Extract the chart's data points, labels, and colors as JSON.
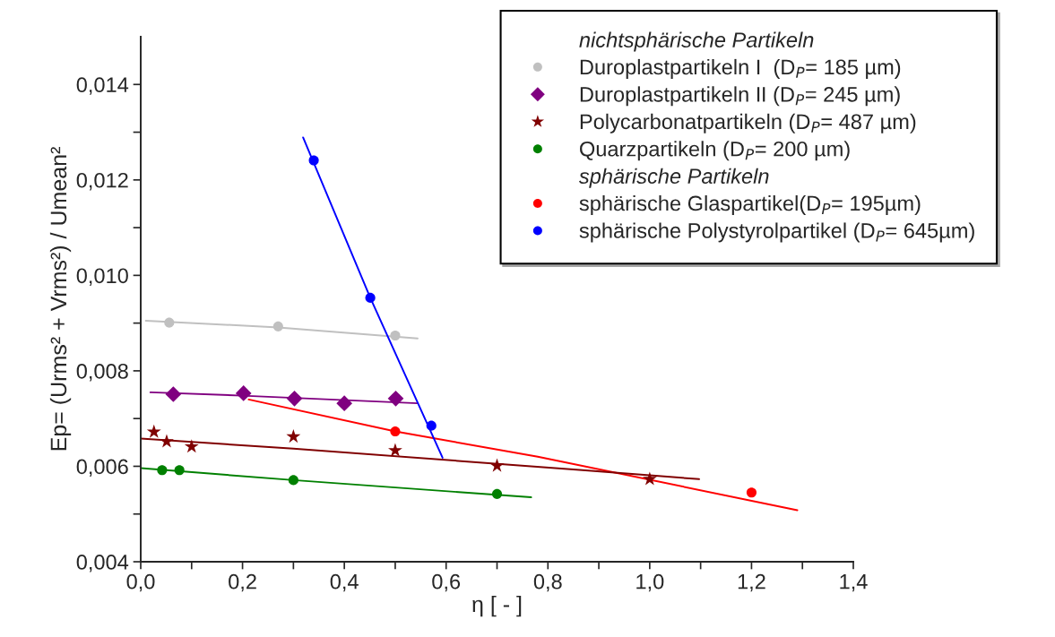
{
  "chart_data": {
    "type": "scatter",
    "xlabel": "η [ - ]",
    "ylabel": "Ep= (Urms² + Vrms²) / Umean²",
    "xlim": [
      0,
      1.4
    ],
    "ylim": [
      0.004,
      0.015
    ],
    "xticks": [
      {
        "value": 0,
        "label": "0,0"
      },
      {
        "value": 0.1,
        "label": null
      },
      {
        "value": 0.2,
        "label": "0,2"
      },
      {
        "value": 0.3,
        "label": null
      },
      {
        "value": 0.4,
        "label": "0,4"
      },
      {
        "value": 0.5,
        "label": null
      },
      {
        "value": 0.6,
        "label": "0,6"
      },
      {
        "value": 0.7,
        "label": null
      },
      {
        "value": 0.8,
        "label": "0,8"
      },
      {
        "value": 0.9,
        "label": null
      },
      {
        "value": 1.0,
        "label": "1,0"
      },
      {
        "value": 1.1,
        "label": null
      },
      {
        "value": 1.2,
        "label": "1,2"
      },
      {
        "value": 1.3,
        "label": null
      },
      {
        "value": 1.4,
        "label": "1,4"
      }
    ],
    "yticks": [
      {
        "value": 0.004,
        "label": "0,004"
      },
      {
        "value": 0.005,
        "label": null
      },
      {
        "value": 0.006,
        "label": "0,006"
      },
      {
        "value": 0.007,
        "label": null
      },
      {
        "value": 0.008,
        "label": "0,008"
      },
      {
        "value": 0.009,
        "label": null
      },
      {
        "value": 0.01,
        "label": "0,010"
      },
      {
        "value": 0.011,
        "label": null
      },
      {
        "value": 0.012,
        "label": "0,012"
      },
      {
        "value": 0.013,
        "label": null
      },
      {
        "value": 0.014,
        "label": "0,014"
      }
    ],
    "grid": false,
    "legend": "top right",
    "annotations": [
      "nichtsphärische Partikeln",
      "sphärische Partikeln"
    ],
    "series": [
      {
        "name": "Duroplastpartikeln I  (D$_{P}$= 185 µm)",
        "marker": "circle",
        "color": "#c0c0c0",
        "x": [
          0.056,
          0.27,
          0.5
        ],
        "values": [
          0.00901,
          0.00893,
          0.00874
        ]
      },
      {
        "name": "Duroplastpartikeln II (D$_{P}$= 245 µm)",
        "marker": "diamond",
        "color": "#800080",
        "x": [
          0.064,
          0.202,
          0.302,
          0.4,
          0.501
        ],
        "values": [
          0.00751,
          0.00753,
          0.00742,
          0.00732,
          0.00742
        ]
      },
      {
        "name": "Polycarbonatpartikeln (D$_{P}$= 487 µm)",
        "marker": "star",
        "color": "#800000",
        "x": [
          0.026,
          0.051,
          0.1,
          0.3,
          0.5,
          0.7,
          1.0
        ],
        "values": [
          0.00672,
          0.00652,
          0.00641,
          0.00662,
          0.00633,
          0.00601,
          0.00573
        ]
      },
      {
        "name": "Quarzpartikeln (D$_{P}$= 200 µm)",
        "marker": "circle",
        "color": "#008000",
        "x": [
          0.042,
          0.076,
          0.3,
          0.7
        ],
        "values": [
          0.00592,
          0.00592,
          0.00571,
          0.00542
        ]
      },
      {
        "name": "sphärische Glaspartikel(D$_{P}$= 195µm)",
        "marker": "circle",
        "color": "#ff0000",
        "x": [
          0.5,
          1.2
        ],
        "values": [
          0.00673,
          0.00545
        ]
      },
      {
        "name": "sphärische Polystyrolpartikel (D$_{P}$= 645µm)",
        "marker": "circle",
        "color": "#0000ff",
        "x": [
          0.34,
          0.451,
          0.571
        ],
        "values": [
          0.01241,
          0.00953,
          0.00685
        ]
      },
      {
        "type": "line",
        "color": "#c0c0c0",
        "x": [
          0.01,
          0.27,
          0.544
        ],
        "values": [
          0.00905,
          0.00891,
          0.00868
        ]
      },
      {
        "type": "line",
        "color": "#800080",
        "x": [
          0.019,
          0.2,
          0.544
        ],
        "values": [
          0.00755,
          0.00748,
          0.00732
        ]
      },
      {
        "type": "line",
        "color": "#ff0000",
        "x": [
          0.212,
          0.5,
          0.78,
          1.29
        ],
        "values": [
          0.0074,
          0.00673,
          0.0062,
          0.00508
        ]
      },
      {
        "type": "line",
        "color": "#800000",
        "x": [
          0.0,
          0.3,
          0.868,
          1.097
        ],
        "values": [
          0.00658,
          0.00637,
          0.00592,
          0.00573
        ]
      },
      {
        "type": "line",
        "color": "#008000",
        "x": [
          0.0,
          0.3,
          0.767
        ],
        "values": [
          0.00596,
          0.00571,
          0.00535
        ]
      },
      {
        "type": "line",
        "color": "#0000ff",
        "x": [
          0.319,
          0.451,
          0.593
        ],
        "values": [
          0.01289,
          0.00953,
          0.00618
        ]
      }
    ]
  }
}
